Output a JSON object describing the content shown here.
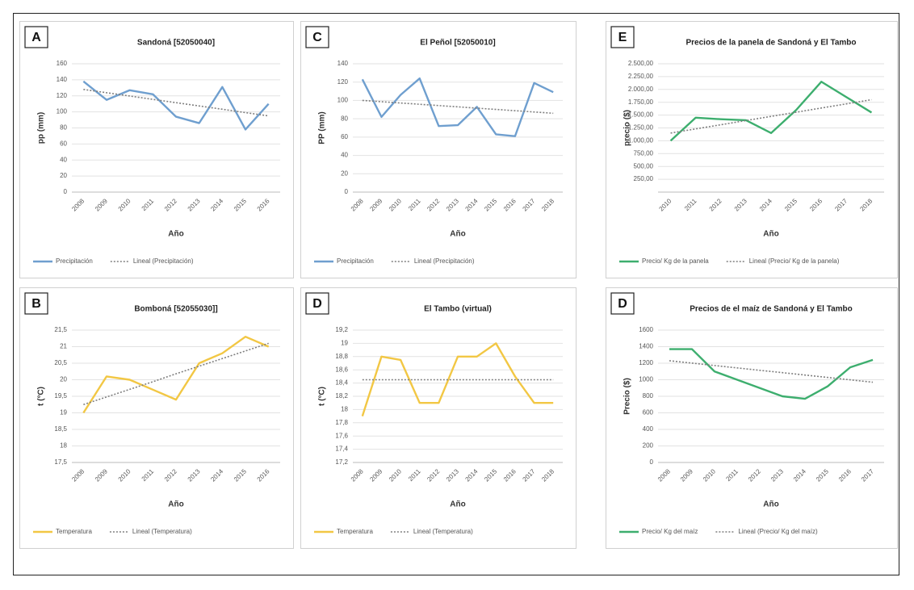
{
  "chart_data": [
    {
      "type": "line",
      "panel_label": "A",
      "title": "Sandoná [52050040]",
      "y_label": "pp (mm)",
      "x_label": "Año",
      "categories": [
        "2008",
        "2009",
        "2010",
        "2011",
        "2012",
        "2013",
        "2014",
        "2015",
        "2016"
      ],
      "ylim": [
        0,
        160
      ],
      "yticks": [
        0,
        20,
        40,
        60,
        80,
        100,
        120,
        140,
        160
      ],
      "grid": true,
      "series": [
        {
          "name": "Precipitación",
          "color": "#6f9fcf",
          "style": "solid",
          "values": [
            138,
            115,
            127,
            122,
            94,
            86,
            131,
            78,
            110
          ]
        },
        {
          "name": "Lineal (Precipitación)",
          "color": "#7f7f7f",
          "style": "dotted",
          "values": [
            128,
            123.9,
            119.8,
            115.6,
            111.5,
            107.4,
            103.3,
            99.1,
            95
          ]
        }
      ]
    },
    {
      "type": "line",
      "panel_label": "C",
      "title": "El Peñol [52050010]",
      "y_label": "PP (mm)",
      "x_label": "Año",
      "categories": [
        "2008",
        "2009",
        "2010",
        "2011",
        "2012",
        "2013",
        "2014",
        "2015",
        "2016",
        "2017",
        "2018"
      ],
      "ylim": [
        0,
        140
      ],
      "yticks": [
        0,
        20,
        40,
        60,
        80,
        100,
        120,
        140
      ],
      "grid": true,
      "series": [
        {
          "name": "Precipitación",
          "color": "#6f9fcf",
          "style": "solid",
          "values": [
            123,
            82,
            106,
            124,
            72,
            73,
            93,
            63,
            61,
            119,
            109
          ]
        },
        {
          "name": "Lineal (Precipitación)",
          "color": "#7f7f7f",
          "style": "dotted",
          "values": [
            100,
            98.6,
            97.2,
            95.8,
            94.4,
            93,
            91.6,
            90.2,
            88.8,
            87.4,
            86
          ]
        }
      ]
    },
    {
      "type": "line",
      "panel_label": "E",
      "title": "Precios de la panela de Sandoná y El Tambo",
      "y_label": "precio ($)",
      "x_label": "Año",
      "categories": [
        "2010",
        "2011",
        "2012",
        "2013",
        "2014",
        "2015",
        "2016",
        "2017",
        "2018"
      ],
      "ylim": [
        0,
        2500
      ],
      "yticks": [
        {
          "value": 250,
          "label": "250,00"
        },
        {
          "value": 500,
          "label": "500,00"
        },
        {
          "value": 750,
          "label": "750,00"
        },
        {
          "value": 1000,
          "label": "1.000,00"
        },
        {
          "value": 1250,
          "label": "1.250,00"
        },
        {
          "value": 1500,
          "label": "1.500,00"
        },
        {
          "value": 1750,
          "label": "1.750,00"
        },
        {
          "value": 2000,
          "label": "2.000,00"
        },
        {
          "value": 2250,
          "label": "2.250,00"
        },
        {
          "value": 2500,
          "label": "2.500,00"
        }
      ],
      "grid": true,
      "series": [
        {
          "name": "Precio/ Kg de la panela",
          "color": "#3dae6e",
          "style": "solid",
          "values": [
            1000,
            1450,
            1420,
            1400,
            1150,
            1600,
            2150,
            1850,
            1550
          ]
        },
        {
          "name": "Lineal (Precio/ Kg de la panela)",
          "color": "#7f7f7f",
          "style": "dotted",
          "values": [
            1150,
            1231,
            1312,
            1394,
            1475,
            1556,
            1638,
            1719,
            1800
          ]
        }
      ]
    },
    {
      "type": "line",
      "panel_label": "B",
      "title": "Bomboná [52055030]]",
      "y_label": "t (°C)",
      "x_label": "Año",
      "categories": [
        "2008",
        "2009",
        "2010",
        "2011",
        "2012",
        "2013",
        "2014",
        "2015",
        "2016"
      ],
      "ylim": [
        17.5,
        21.5
      ],
      "yticks": [
        {
          "value": 17.5,
          "label": "17,5"
        },
        18,
        {
          "value": 18.5,
          "label": "18,5"
        },
        19,
        {
          "value": 19.5,
          "label": "19,5"
        },
        20,
        {
          "value": 20.5,
          "label": "20,5"
        },
        21,
        {
          "value": 21.5,
          "label": "21,5"
        }
      ],
      "grid": true,
      "series": [
        {
          "name": "Temperatura",
          "color": "#f2c744",
          "style": "solid",
          "values": [
            19.0,
            20.1,
            20.0,
            19.7,
            19.4,
            20.5,
            20.8,
            21.3,
            21.0
          ]
        },
        {
          "name": "Lineal (Temperatura)",
          "color": "#7f7f7f",
          "style": "dotted",
          "values": [
            19.25,
            19.48,
            19.71,
            19.94,
            20.18,
            20.41,
            20.64,
            20.87,
            21.1
          ]
        }
      ]
    },
    {
      "type": "line",
      "panel_label": "D",
      "title": "El Tambo (virtual)",
      "y_label": "t (°C)",
      "x_label": "Año",
      "categories": [
        "2008",
        "2009",
        "2010",
        "2011",
        "2012",
        "2013",
        "2014",
        "2015",
        "2016",
        "2017",
        "2018"
      ],
      "ylim": [
        17.2,
        19.2
      ],
      "yticks": [
        {
          "value": 17.2,
          "label": "17,2"
        },
        {
          "value": 17.4,
          "label": "17,4"
        },
        {
          "value": 17.6,
          "label": "17,6"
        },
        {
          "value": 17.8,
          "label": "17,8"
        },
        18,
        {
          "value": 18.2,
          "label": "18,2"
        },
        {
          "value": 18.4,
          "label": "18,4"
        },
        {
          "value": 18.6,
          "label": "18,6"
        },
        {
          "value": 18.8,
          "label": "18,8"
        },
        19,
        {
          "value": 19.2,
          "label": "19,2"
        }
      ],
      "grid": true,
      "series": [
        {
          "name": "Temperatura",
          "color": "#f2c744",
          "style": "solid",
          "values": [
            17.9,
            18.8,
            18.75,
            18.1,
            18.1,
            18.8,
            18.8,
            19.0,
            18.5,
            18.1,
            18.1
          ]
        },
        {
          "name": "Lineal (Temperatura)",
          "color": "#7f7f7f",
          "style": "dotted",
          "values": [
            18.45,
            18.45,
            18.45,
            18.45,
            18.45,
            18.45,
            18.45,
            18.45,
            18.45,
            18.45,
            18.45
          ]
        }
      ]
    },
    {
      "type": "line",
      "panel_label": "D",
      "title": "Precios de el maíz de Sandoná y El Tambo",
      "y_label": "Precio ($)",
      "x_label": "Año",
      "categories": [
        "2008",
        "2009",
        "2010",
        "2011",
        "2012",
        "2013",
        "2014",
        "2015",
        "2016",
        "2017"
      ],
      "ylim": [
        0,
        1600
      ],
      "yticks": [
        0,
        200,
        400,
        600,
        800,
        1000,
        1200,
        1400,
        1600
      ],
      "grid": true,
      "series": [
        {
          "name": "Precio/ Kg del maíz",
          "color": "#3dae6e",
          "style": "solid",
          "values": [
            1370,
            1370,
            1100,
            1000,
            900,
            800,
            770,
            920,
            1150,
            1240
          ]
        },
        {
          "name": "Lineal (Precio/ Kg del maíz)",
          "color": "#7f7f7f",
          "style": "dotted",
          "values": [
            1230,
            1201,
            1172,
            1143,
            1114,
            1086,
            1057,
            1028,
            999,
            970
          ]
        }
      ]
    }
  ]
}
